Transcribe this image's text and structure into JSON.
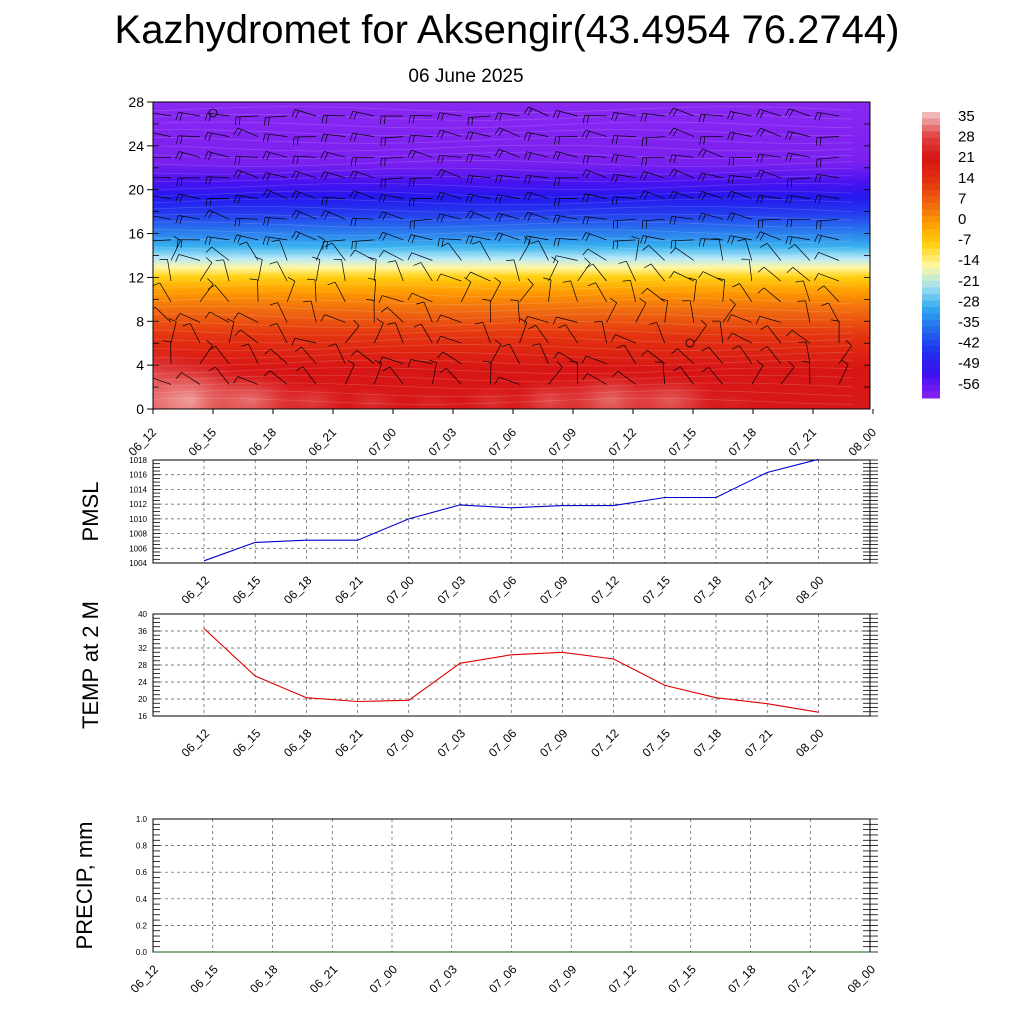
{
  "title": "Kazhydromet for Aksengir(43.4954 76.2744)",
  "subtitle": "06 June 2025",
  "chart_data": [
    {
      "type": "heatmap",
      "name": "temperature-profile",
      "ylim": [
        0,
        28
      ],
      "yticks": [
        0,
        4,
        8,
        12,
        16,
        20,
        24,
        28
      ],
      "xticks": [
        "06_12",
        "06_15",
        "06_18",
        "06_21",
        "07_00",
        "07_03",
        "07_06",
        "07_09",
        "07_12",
        "07_15",
        "07_18",
        "07_21",
        "08_00"
      ],
      "colorbar": {
        "labels": [
          "35",
          "28",
          "21",
          "14",
          "7",
          "0",
          "-7",
          "-14",
          "-21",
          "-28",
          "-35",
          "-42",
          "-49",
          "-56"
        ],
        "stops": [
          "#f2b8b8",
          "#e04040",
          "#d81515",
          "#e23010",
          "#f06010",
          "#ff9a00",
          "#ffd010",
          "#fff8a0",
          "#a0e0f0",
          "#30a8ef",
          "#2468ee",
          "#2030ee",
          "#3a10f0",
          "#8020f0"
        ]
      },
      "surface_temp_by_time": [
        36.5,
        33,
        30,
        27,
        26,
        25,
        26,
        28,
        30,
        29,
        25,
        22,
        19
      ],
      "wind_barbs": true
    },
    {
      "type": "line",
      "name": "pmsl",
      "ylabel": "PMSL",
      "ylim": [
        1004,
        1018
      ],
      "yticks": [
        1004,
        1006,
        1008,
        1010,
        1012,
        1014,
        1016,
        1018
      ],
      "x": [
        "06_12",
        "06_15",
        "06_18",
        "06_21",
        "07_00",
        "07_03",
        "07_06",
        "07_09",
        "07_12",
        "07_15",
        "07_18",
        "07_21",
        "08_00"
      ],
      "values": [
        1004.3,
        1006.8,
        1007.1,
        1007.1,
        1010.0,
        1011.9,
        1011.5,
        1011.8,
        1011.8,
        1012.9,
        1012.9,
        1016.3,
        1018.1
      ],
      "color": "#0000cc",
      "grid": true
    },
    {
      "type": "line",
      "name": "temp2m",
      "ylabel": "TEMP at 2 M",
      "ylim": [
        16,
        40
      ],
      "yticks": [
        16,
        20,
        24,
        28,
        32,
        36,
        40
      ],
      "x": [
        "06_12",
        "06_15",
        "06_18",
        "06_21",
        "07_00",
        "07_03",
        "07_06",
        "07_09",
        "07_12",
        "07_15",
        "07_18",
        "07_21",
        "08_00"
      ],
      "values": [
        36.6,
        25.4,
        20.3,
        19.4,
        19.7,
        28.4,
        30.4,
        31.0,
        29.4,
        23.2,
        20.3,
        18.9,
        16.9
      ],
      "color": "#e00000",
      "grid": true
    },
    {
      "type": "line",
      "name": "precip",
      "ylabel": "PRECIP, mm",
      "ylim": [
        0.0,
        1.0
      ],
      "yticks": [
        "0.0",
        "0.2",
        "0.4",
        "0.6",
        "0.8",
        "1.0"
      ],
      "x": [
        "06_12",
        "06_15",
        "06_18",
        "06_21",
        "07_00",
        "07_03",
        "07_06",
        "07_09",
        "07_12",
        "07_15",
        "07_18",
        "07_21",
        "08_00"
      ],
      "values": [
        0,
        0,
        0,
        0,
        0,
        0,
        0,
        0,
        0,
        0,
        0,
        0,
        0
      ],
      "color": "#006400",
      "grid": true
    }
  ]
}
